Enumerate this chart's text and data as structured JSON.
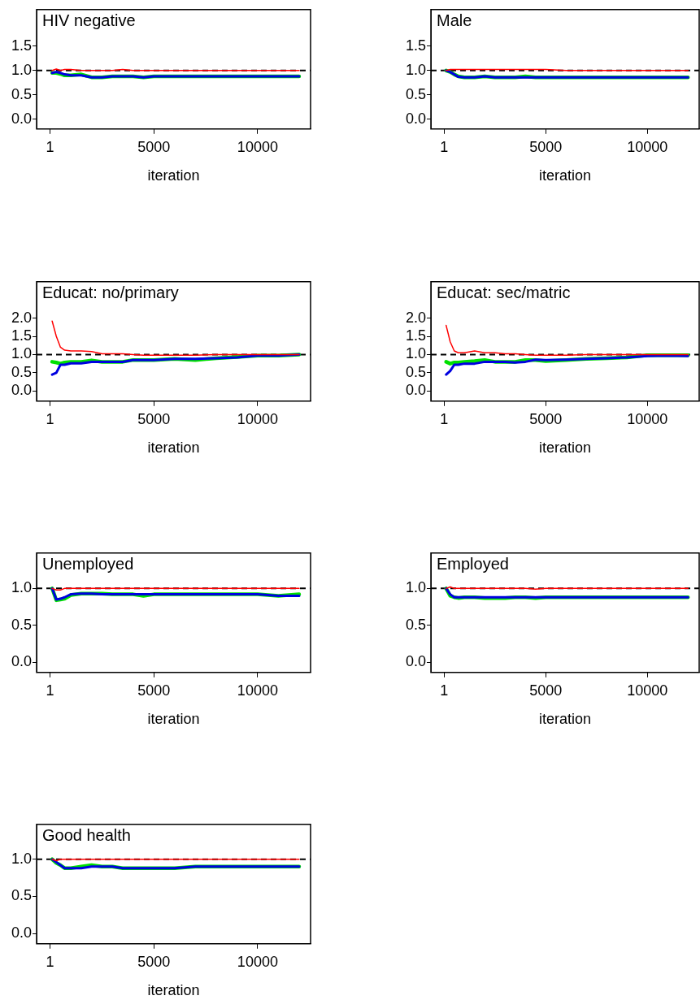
{
  "chart_data": [
    {
      "type": "line",
      "title": "HIV negative",
      "xlabel": "iteration",
      "x": [
        100,
        300,
        500,
        700,
        1000,
        1500,
        2000,
        2500,
        3000,
        3500,
        4000,
        4500,
        5000,
        6000,
        7000,
        8000,
        9000,
        10000,
        11000,
        12000
      ],
      "xlim": [
        -650,
        12550
      ],
      "xticks": [
        1,
        5000,
        10000
      ],
      "ylim": [
        -0.2,
        2.25
      ],
      "yticks": [
        {
          "value": 0,
          "label": "0.0"
        },
        {
          "value": 0.5,
          "label": "0.5"
        },
        {
          "value": 1,
          "label": "1.0"
        },
        {
          "value": 1.5,
          "label": "1.5"
        }
      ],
      "grid": false,
      "marker": "none",
      "line_style": "solid",
      "ref_lines": [
        {
          "axis": "y",
          "value": 1,
          "color": "#000000",
          "line_style": "dashed"
        }
      ],
      "series": [
        {
          "color": "#00e000",
          "values": [
            0.95,
            0.95,
            0.93,
            0.9,
            0.9,
            0.92,
            0.86,
            0.86,
            0.88,
            0.88,
            0.88,
            0.86,
            0.88,
            0.88,
            0.88,
            0.88,
            0.88,
            0.88,
            0.88,
            0.88
          ]
        },
        {
          "color": "#0000e0",
          "values": [
            0.95,
            0.97,
            0.95,
            0.92,
            0.9,
            0.9,
            0.86,
            0.86,
            0.88,
            0.88,
            0.88,
            0.86,
            0.88,
            0.88,
            0.88,
            0.88,
            0.88,
            0.88,
            0.88,
            0.88
          ]
        },
        {
          "color": "#ff0000",
          "values": [
            1.0,
            1.03,
            1.0,
            1.02,
            1.02,
            1.0,
            1.0,
            1.0,
            1.0,
            1.02,
            1.0,
            1.0,
            1.0,
            1.0,
            1.0,
            1.0,
            1.0,
            1.0,
            1.0,
            1.0
          ]
        }
      ]
    },
    {
      "type": "line",
      "title": "Male",
      "xlabel": "iteration",
      "x": [
        100,
        300,
        500,
        700,
        1000,
        1500,
        2000,
        2500,
        3000,
        3500,
        4000,
        4500,
        5000,
        6000,
        7000,
        8000,
        9000,
        10000,
        11000,
        12000
      ],
      "xlim": [
        -650,
        12550
      ],
      "xticks": [
        1,
        5000,
        10000
      ],
      "ylim": [
        -0.2,
        2.25
      ],
      "yticks": [
        {
          "value": 0,
          "label": "0.0"
        },
        {
          "value": 0.5,
          "label": "0.5"
        },
        {
          "value": 1,
          "label": "1.0"
        },
        {
          "value": 1.5,
          "label": "1.5"
        }
      ],
      "grid": false,
      "marker": "none",
      "line_style": "solid",
      "ref_lines": [
        {
          "axis": "y",
          "value": 1,
          "color": "#000000",
          "line_style": "dashed"
        }
      ],
      "series": [
        {
          "color": "#00e000",
          "values": [
            1.0,
            0.97,
            0.92,
            0.88,
            0.86,
            0.86,
            0.88,
            0.86,
            0.86,
            0.86,
            0.88,
            0.86,
            0.86,
            0.86,
            0.86,
            0.86,
            0.86,
            0.86,
            0.86,
            0.86
          ]
        },
        {
          "color": "#0000e0",
          "values": [
            1.0,
            0.97,
            0.92,
            0.87,
            0.86,
            0.86,
            0.88,
            0.86,
            0.86,
            0.86,
            0.86,
            0.86,
            0.86,
            0.86,
            0.86,
            0.86,
            0.86,
            0.86,
            0.86,
            0.86
          ]
        },
        {
          "color": "#ff0000",
          "values": [
            1.0,
            1.02,
            1.02,
            1.02,
            1.02,
            1.02,
            1.02,
            1.02,
            1.02,
            1.02,
            1.02,
            1.02,
            1.02,
            1.0,
            1.0,
            1.0,
            1.0,
            1.0,
            1.0,
            1.0
          ]
        }
      ]
    },
    {
      "type": "line",
      "title": "Educat: no/primary",
      "xlabel": "iteration",
      "x": [
        100,
        300,
        500,
        700,
        1000,
        1500,
        2000,
        2500,
        3000,
        3500,
        4000,
        4500,
        5000,
        6000,
        7000,
        8000,
        9000,
        10000,
        11000,
        12000
      ],
      "xlim": [
        -650,
        12550
      ],
      "xticks": [
        1,
        5000,
        10000
      ],
      "ylim": [
        -0.28,
        3.0
      ],
      "yticks": [
        {
          "value": 0,
          "label": "0.0"
        },
        {
          "value": 0.5,
          "label": "0.5"
        },
        {
          "value": 1,
          "label": "1.0"
        },
        {
          "value": 1.5,
          "label": "1.5"
        },
        {
          "value": 2,
          "label": "2.0"
        }
      ],
      "grid": false,
      "marker": "none",
      "line_style": "solid",
      "ref_lines": [
        {
          "axis": "y",
          "value": 1,
          "color": "#000000",
          "line_style": "dashed"
        }
      ],
      "series": [
        {
          "color": "#00e000",
          "values": [
            0.8,
            0.78,
            0.75,
            0.78,
            0.8,
            0.8,
            0.84,
            0.8,
            0.8,
            0.8,
            0.85,
            0.85,
            0.85,
            0.88,
            0.85,
            0.9,
            0.93,
            0.97,
            0.97,
            1.0
          ]
        },
        {
          "color": "#0000e0",
          "values": [
            0.45,
            0.5,
            0.72,
            0.72,
            0.76,
            0.76,
            0.8,
            0.8,
            0.8,
            0.8,
            0.85,
            0.85,
            0.85,
            0.88,
            0.88,
            0.9,
            0.92,
            0.97,
            0.97,
            1.0
          ]
        },
        {
          "color": "#ff0000",
          "values": [
            1.92,
            1.5,
            1.2,
            1.12,
            1.1,
            1.1,
            1.08,
            1.02,
            1.02,
            1.02,
            1.0,
            0.98,
            0.98,
            0.98,
            0.98,
            1.0,
            1.0,
            1.0,
            1.0,
            1.0
          ]
        }
      ]
    },
    {
      "type": "line",
      "title": "Educat: sec/matric",
      "xlabel": "iteration",
      "x": [
        100,
        300,
        500,
        700,
        1000,
        1500,
        2000,
        2500,
        3000,
        3500,
        4000,
        4500,
        5000,
        6000,
        7000,
        8000,
        9000,
        10000,
        11000,
        12000
      ],
      "xlim": [
        -650,
        12550
      ],
      "xticks": [
        1,
        5000,
        10000
      ],
      "ylim": [
        -0.28,
        3.0
      ],
      "yticks": [
        {
          "value": 0,
          "label": "0.0"
        },
        {
          "value": 0.5,
          "label": "0.5"
        },
        {
          "value": 1,
          "label": "1.0"
        },
        {
          "value": 1.5,
          "label": "1.5"
        },
        {
          "value": 2,
          "label": "2.0"
        }
      ],
      "grid": false,
      "marker": "none",
      "line_style": "solid",
      "ref_lines": [
        {
          "axis": "y",
          "value": 1,
          "color": "#000000",
          "line_style": "dashed"
        }
      ],
      "series": [
        {
          "color": "#00e000",
          "values": [
            0.8,
            0.75,
            0.78,
            0.78,
            0.8,
            0.82,
            0.85,
            0.8,
            0.8,
            0.8,
            0.85,
            0.85,
            0.82,
            0.85,
            0.88,
            0.9,
            0.92,
            0.98,
            0.98,
            0.98
          ]
        },
        {
          "color": "#0000e0",
          "values": [
            0.45,
            0.55,
            0.72,
            0.72,
            0.75,
            0.75,
            0.8,
            0.8,
            0.8,
            0.78,
            0.8,
            0.86,
            0.85,
            0.86,
            0.88,
            0.9,
            0.92,
            0.96,
            0.97,
            0.96
          ]
        },
        {
          "color": "#ff0000",
          "values": [
            1.8,
            1.35,
            1.1,
            1.05,
            1.05,
            1.1,
            1.05,
            1.05,
            1.02,
            1.02,
            1.0,
            0.98,
            0.98,
            0.98,
            1.0,
            1.0,
            1.0,
            1.0,
            1.0,
            1.0
          ]
        }
      ]
    },
    {
      "type": "line",
      "title": "Unemployed",
      "xlabel": "iteration",
      "x": [
        100,
        300,
        500,
        700,
        1000,
        1500,
        2000,
        2500,
        3000,
        3500,
        4000,
        4500,
        5000,
        6000,
        7000,
        8000,
        9000,
        10000,
        11000,
        12000
      ],
      "xlim": [
        -650,
        12550
      ],
      "xticks": [
        1,
        5000,
        10000
      ],
      "ylim": [
        -0.14,
        1.48
      ],
      "yticks": [
        {
          "value": 0,
          "label": "0.0"
        },
        {
          "value": 0.5,
          "label": "0.5"
        },
        {
          "value": 1,
          "label": "1.0"
        }
      ],
      "grid": false,
      "marker": "none",
      "line_style": "solid",
      "ref_lines": [
        {
          "axis": "y",
          "value": 1,
          "color": "#000000",
          "line_style": "dashed"
        }
      ],
      "series": [
        {
          "color": "#00e000",
          "values": [
            1.0,
            0.84,
            0.85,
            0.86,
            0.91,
            0.93,
            0.93,
            0.93,
            0.92,
            0.92,
            0.92,
            0.9,
            0.92,
            0.92,
            0.92,
            0.92,
            0.92,
            0.92,
            0.9,
            0.92
          ]
        },
        {
          "color": "#0000e0",
          "values": [
            1.0,
            0.85,
            0.86,
            0.88,
            0.92,
            0.93,
            0.93,
            0.92,
            0.92,
            0.92,
            0.92,
            0.92,
            0.92,
            0.92,
            0.92,
            0.92,
            0.92,
            0.92,
            0.9,
            0.9
          ]
        },
        {
          "color": "#ff0000",
          "values": [
            1.0,
            0.98,
            0.98,
            1.0,
            1.0,
            1.0,
            1.0,
            1.0,
            1.0,
            1.0,
            1.0,
            1.0,
            1.0,
            1.0,
            1.0,
            1.0,
            1.0,
            1.0,
            1.0,
            1.0
          ]
        }
      ]
    },
    {
      "type": "line",
      "title": "Employed",
      "xlabel": "iteration",
      "x": [
        100,
        300,
        500,
        700,
        1000,
        1500,
        2000,
        2500,
        3000,
        3500,
        4000,
        4500,
        5000,
        6000,
        7000,
        8000,
        9000,
        10000,
        11000,
        12000
      ],
      "xlim": [
        -650,
        12550
      ],
      "xticks": [
        1,
        5000,
        10000
      ],
      "ylim": [
        -0.14,
        1.48
      ],
      "yticks": [
        {
          "value": 0,
          "label": "0.0"
        },
        {
          "value": 0.5,
          "label": "0.5"
        },
        {
          "value": 1,
          "label": "1.0"
        }
      ],
      "grid": false,
      "marker": "none",
      "line_style": "solid",
      "ref_lines": [
        {
          "axis": "y",
          "value": 1,
          "color": "#000000",
          "line_style": "dashed"
        }
      ],
      "series": [
        {
          "color": "#00e000",
          "values": [
            1.0,
            0.9,
            0.88,
            0.87,
            0.88,
            0.88,
            0.87,
            0.87,
            0.87,
            0.88,
            0.88,
            0.87,
            0.88,
            0.88,
            0.88,
            0.88,
            0.88,
            0.88,
            0.88,
            0.88
          ]
        },
        {
          "color": "#0000e0",
          "values": [
            1.0,
            0.92,
            0.88,
            0.88,
            0.88,
            0.88,
            0.88,
            0.88,
            0.88,
            0.88,
            0.88,
            0.88,
            0.88,
            0.88,
            0.88,
            0.88,
            0.88,
            0.88,
            0.88,
            0.88
          ]
        },
        {
          "color": "#ff0000",
          "values": [
            1.0,
            1.02,
            1.0,
            1.0,
            1.0,
            1.0,
            1.0,
            1.0,
            1.0,
            1.0,
            1.0,
            0.99,
            1.0,
            1.0,
            1.0,
            1.0,
            1.0,
            1.0,
            1.0,
            1.0
          ]
        }
      ]
    },
    {
      "type": "line",
      "title": "Good health",
      "xlabel": "iteration",
      "x": [
        100,
        300,
        500,
        700,
        1000,
        1500,
        2000,
        2500,
        3000,
        3500,
        4000,
        4500,
        5000,
        6000,
        7000,
        8000,
        9000,
        10000,
        11000,
        12000
      ],
      "xlim": [
        -650,
        12550
      ],
      "xticks": [
        1,
        5000,
        10000
      ],
      "ylim": [
        -0.14,
        1.47
      ],
      "yticks": [
        {
          "value": 0,
          "label": "0.0"
        },
        {
          "value": 0.5,
          "label": "0.5"
        },
        {
          "value": 1,
          "label": "1.0"
        }
      ],
      "grid": false,
      "marker": "none",
      "line_style": "solid",
      "ref_lines": [
        {
          "axis": "y",
          "value": 1,
          "color": "#000000",
          "line_style": "dashed"
        }
      ],
      "series": [
        {
          "color": "#00e000",
          "values": [
            1.0,
            0.95,
            0.92,
            0.88,
            0.88,
            0.9,
            0.92,
            0.9,
            0.9,
            0.88,
            0.88,
            0.88,
            0.88,
            0.88,
            0.9,
            0.9,
            0.9,
            0.9,
            0.9,
            0.9
          ]
        },
        {
          "color": "#0000e0",
          "values": [
            1.0,
            0.96,
            0.92,
            0.88,
            0.88,
            0.88,
            0.9,
            0.9,
            0.9,
            0.88,
            0.88,
            0.88,
            0.88,
            0.88,
            0.9,
            0.9,
            0.9,
            0.9,
            0.9,
            0.9
          ]
        },
        {
          "color": "#ff0000",
          "values": [
            1.0,
            0.98,
            1.0,
            1.0,
            1.0,
            1.0,
            1.0,
            1.0,
            1.0,
            1.0,
            1.0,
            1.0,
            1.0,
            1.0,
            1.0,
            1.0,
            1.0,
            1.0,
            1.0,
            1.0
          ]
        }
      ]
    }
  ]
}
